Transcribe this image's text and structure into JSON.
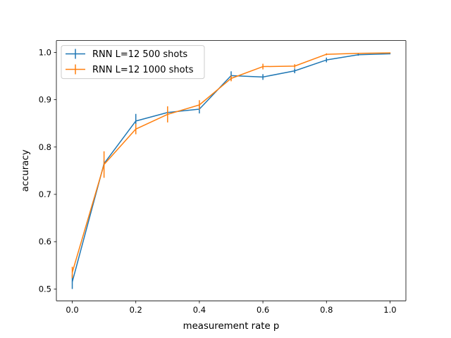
{
  "chart_data": {
    "type": "line",
    "xlabel": "measurement rate p",
    "ylabel": "accuracy",
    "xlim": [
      -0.05,
      1.05
    ],
    "ylim": [
      0.475,
      1.025
    ],
    "xticks": [
      0.0,
      0.2,
      0.4,
      0.6,
      0.8,
      1.0
    ],
    "xtick_labels": [
      "0.0",
      "0.2",
      "0.4",
      "0.6",
      "0.8",
      "1.0"
    ],
    "yticks": [
      0.5,
      0.6,
      0.7,
      0.8,
      0.9,
      1.0
    ],
    "ytick_labels": [
      "0.5",
      "0.6",
      "0.7",
      "0.8",
      "0.9",
      "1.0"
    ],
    "grid": false,
    "legend_position": "upper-left",
    "series": [
      {
        "name": "RNN L=12 500 shots",
        "color": "#1f77b4",
        "x": [
          0.0,
          0.1,
          0.2,
          0.3,
          0.4,
          0.5,
          0.6,
          0.7,
          0.8,
          0.9,
          1.0
        ],
        "y": [
          0.515,
          0.765,
          0.855,
          0.873,
          0.88,
          0.951,
          0.948,
          0.961,
          0.984,
          0.995,
          0.997
        ],
        "yerr": [
          0.015,
          0.006,
          0.015,
          0.004,
          0.009,
          0.009,
          0.006,
          0.005,
          0.005,
          0.002,
          0.001
        ]
      },
      {
        "name": "RNN L=12 1000 shots",
        "color": "#ff7f0e",
        "x": [
          0.0,
          0.1,
          0.2,
          0.3,
          0.4,
          0.5,
          0.6,
          0.7,
          0.8,
          0.9,
          1.0
        ],
        "y": [
          0.535,
          0.763,
          0.838,
          0.869,
          0.889,
          0.945,
          0.97,
          0.971,
          0.996,
          0.998,
          0.999
        ],
        "yerr": [
          0.012,
          0.028,
          0.011,
          0.017,
          0.01,
          0.006,
          0.006,
          0.004,
          0.002,
          0.001,
          0.001
        ]
      }
    ]
  }
}
